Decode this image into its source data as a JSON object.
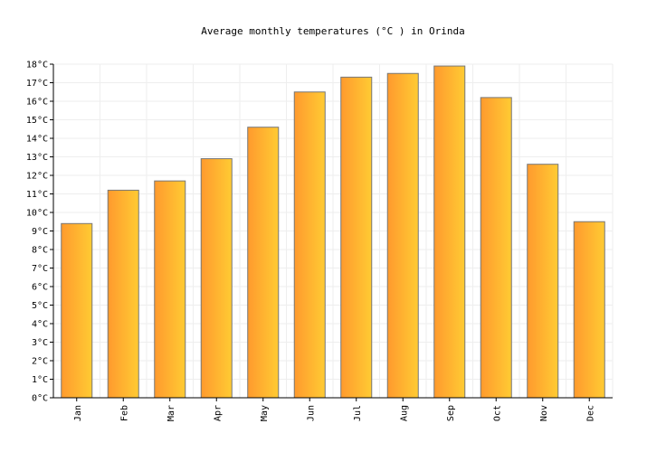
{
  "chart_data": {
    "type": "bar",
    "title": "Average monthly temperatures (°C ) in Orinda",
    "xlabel": "",
    "ylabel": "",
    "unit": "°C",
    "categories": [
      "Jan",
      "Feb",
      "Mar",
      "Apr",
      "May",
      "Jun",
      "Jul",
      "Aug",
      "Sep",
      "Oct",
      "Nov",
      "Dec"
    ],
    "values": [
      9.4,
      11.2,
      11.7,
      12.9,
      14.6,
      16.5,
      17.3,
      17.5,
      17.9,
      16.2,
      12.6,
      9.5
    ],
    "ylim": [
      0,
      18
    ],
    "yticks": [
      "0°C",
      "1°C",
      "2°C",
      "3°C",
      "4°C",
      "5°C",
      "6°C",
      "7°C",
      "8°C",
      "9°C",
      "10°C",
      "11°C",
      "12°C",
      "13°C",
      "14°C",
      "15°C",
      "16°C",
      "17°C",
      "18°C"
    ],
    "grid": true,
    "colors": {
      "bar_start": "#ff9a2e",
      "bar_end": "#ffcb33",
      "bar_stroke": "#777777",
      "grid": "#eeeeee",
      "axis": "#000000"
    }
  }
}
